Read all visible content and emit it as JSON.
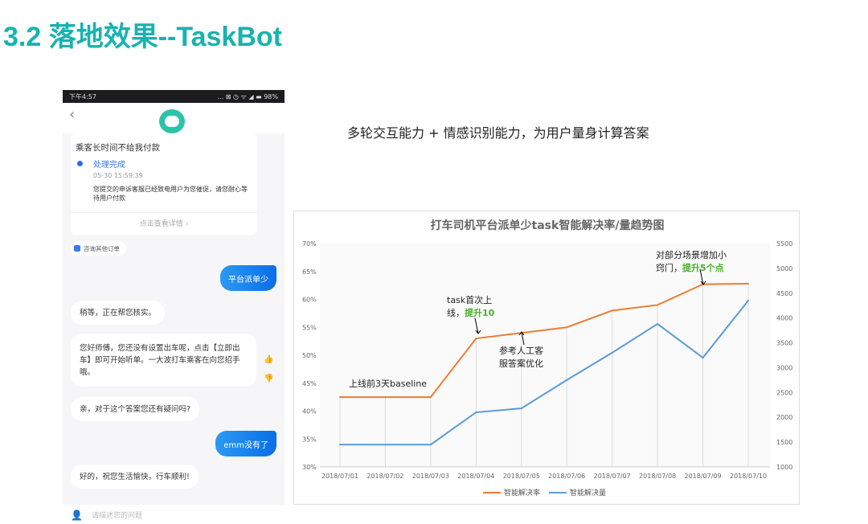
{
  "slide": {
    "title": "3.2 落地效果--TaskBot",
    "subtitle": "多轮交互能力 + 情感识别能力，为用户量身计算答案"
  },
  "phone": {
    "status": {
      "time": "下午4:57",
      "icons": "... ⊠ ◷ ᯤ ◢ ▬",
      "battery": "98%"
    },
    "nav": {
      "back_icon": "chevron-left-icon",
      "back": "‹"
    },
    "card": {
      "title": "乘客长时间不给我付款",
      "status": "处理完成",
      "time": "05-30 15:59:39",
      "desc": "您提交的申诉客服已经致电用户为您催促，请您耐心等待用户付款",
      "link": "点击查看详情 ›"
    },
    "chip": "咨询其他订单",
    "messages": [
      {
        "from": "user",
        "text": "平台派单少"
      },
      {
        "from": "bot",
        "text": "稍等，正在帮您核实。"
      },
      {
        "from": "bot",
        "text": "您好师傅，您还没有设置出车呢，点击【立即出车】即可开始听单。一大波打车乘客在向您招手哦。"
      },
      {
        "from": "bot",
        "text": "亲，对于这个答案您还有疑问吗?"
      },
      {
        "from": "user",
        "text": "emm没有了"
      },
      {
        "from": "bot",
        "text": "好的，祝您生活愉快，行车顺利!"
      }
    ],
    "feedback": {
      "like": "👍",
      "dislike": "👎"
    },
    "input": {
      "placeholder": "请描述您的问题"
    }
  },
  "chart_data": {
    "type": "line",
    "title": "打车司机平台派单少task智能解决率/量趋势图",
    "categories": [
      "2018/07/01",
      "2018/07/02",
      "2018/07/03",
      "2018/07/04",
      "2018/07/05",
      "2018/07/06",
      "2018/07/07",
      "2018/07/08",
      "2018/07/09",
      "2018/07/10"
    ],
    "y_left": {
      "ticks": [
        "30%",
        "35%",
        "40%",
        "45%",
        "50%",
        "55%",
        "60%",
        "65%",
        "70%"
      ],
      "range": [
        30,
        70
      ]
    },
    "y_right": {
      "ticks": [
        "1000",
        "1500",
        "2000",
        "2500",
        "3000",
        "3500",
        "4000",
        "4500",
        "5000",
        "5500"
      ],
      "range": [
        1000,
        5500
      ]
    },
    "series": [
      {
        "name": "智能解决率",
        "axis": "left",
        "color": "#ed7d31",
        "values": [
          42.5,
          42.5,
          42.5,
          53,
          54,
          55,
          58,
          59,
          62.7,
          62.8
        ]
      },
      {
        "name": "智能解决量",
        "axis": "right",
        "color": "#5b9bd5",
        "values": [
          1450,
          1450,
          1450,
          2100,
          2180,
          2750,
          3300,
          3880,
          3200,
          4350
        ]
      }
    ],
    "annotations": [
      {
        "lines": [
          [
            {
              "t": "上线前3天baseline"
            }
          ]
        ]
      },
      {
        "lines": [
          [
            {
              "t": "task首次上"
            }
          ],
          [
            {
              "t": "线，"
            },
            {
              "t": "提升10",
              "green": true
            }
          ]
        ]
      },
      {
        "lines": [
          [
            {
              "t": "参考人工客"
            }
          ],
          [
            {
              "t": "服答案优化"
            }
          ]
        ]
      },
      {
        "lines": [
          [
            {
              "t": "对部分场景增加小"
            }
          ],
          [
            {
              "t": "窍门，"
            },
            {
              "t": "提升5个点",
              "green": true
            }
          ]
        ]
      }
    ],
    "legend": "bottom",
    "grid": "vertical"
  }
}
